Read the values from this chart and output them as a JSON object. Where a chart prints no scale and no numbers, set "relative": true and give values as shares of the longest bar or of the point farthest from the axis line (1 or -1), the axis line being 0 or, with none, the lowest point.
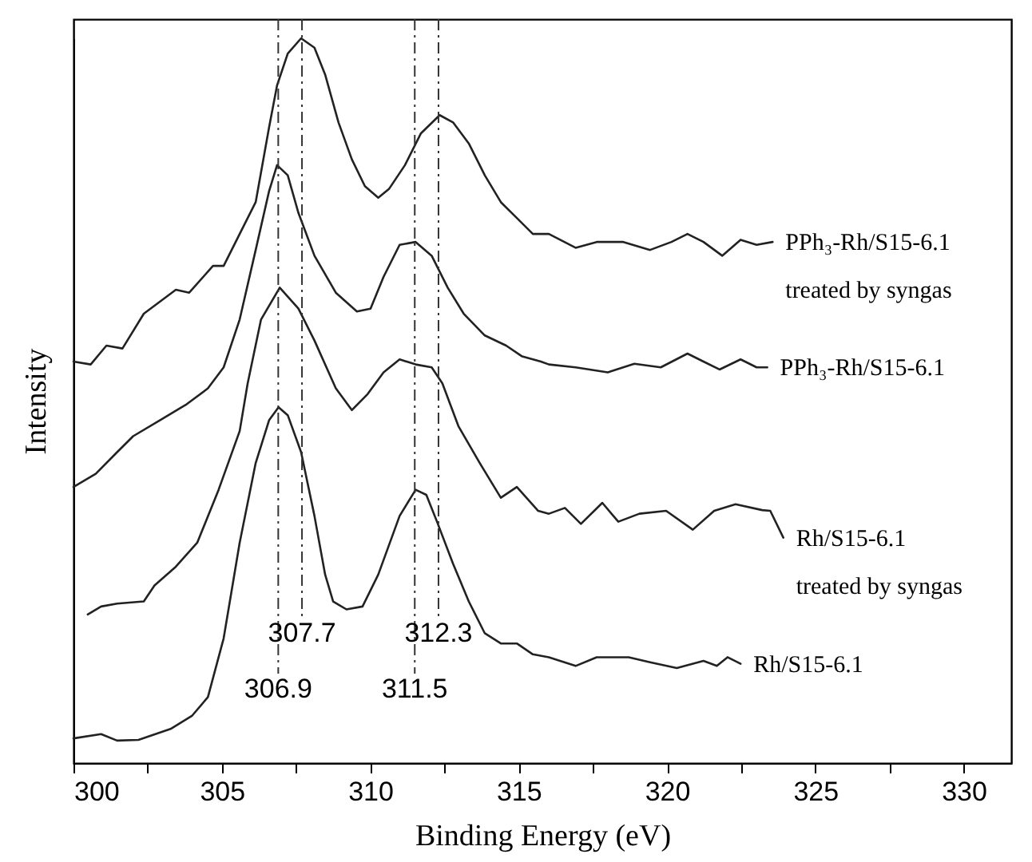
{
  "chart_data": {
    "type": "line",
    "xlabel": "Binding Energy (eV)",
    "ylabel": "Intensity",
    "relative": true,
    "xlim": [
      300,
      331.6
    ],
    "xticks": [
      300,
      {
        "value": 302.5,
        "label": null
      },
      305,
      {
        "value": 307.5,
        "label": null
      },
      310,
      {
        "value": 312.5,
        "label": null
      },
      315,
      {
        "value": 317.5,
        "label": null
      },
      320,
      {
        "value": 322.5,
        "label": null
      },
      325,
      {
        "value": 327.5,
        "label": null
      },
      330
    ],
    "grid": false,
    "series": [
      {
        "name": "PPh₃-Rh/S15-6.1\ntreated by syngas",
        "color": "#222222",
        "x": [
          300.0,
          300.58,
          301.11,
          301.65,
          302.37,
          303.45,
          303.9,
          304.7,
          305.06,
          305.6,
          306.14,
          306.59,
          306.86,
          307.22,
          307.67,
          308.12,
          308.48,
          308.93,
          309.38,
          309.82,
          310.27,
          310.63,
          311.17,
          311.71,
          312.34,
          312.79,
          313.32,
          313.86,
          314.4,
          314.94,
          315.48,
          316.02,
          316.92,
          317.63,
          318.53,
          319.43,
          320.15,
          320.69,
          321.23,
          321.86,
          322.48,
          323.02,
          323.56
        ],
        "values": [
          0.554,
          0.55,
          0.576,
          0.572,
          0.62,
          0.653,
          0.649,
          0.686,
          0.686,
          0.73,
          0.774,
          0.877,
          0.935,
          0.979,
          1,
          0.987,
          0.95,
          0.884,
          0.833,
          0.796,
          0.78,
          0.792,
          0.825,
          0.869,
          0.894,
          0.884,
          0.855,
          0.811,
          0.774,
          0.752,
          0.73,
          0.73,
          0.711,
          0.719,
          0.719,
          0.708,
          0.719,
          0.73,
          0.719,
          0.7,
          0.722,
          0.715,
          0.719
        ]
      },
      {
        "name": "PPh₃-Rh/S15-6.1",
        "color": "#222222",
        "x": [
          300.0,
          300.75,
          301.47,
          302.01,
          302.91,
          303.81,
          304.53,
          305.06,
          305.6,
          306.14,
          306.59,
          306.86,
          307.22,
          307.58,
          308.12,
          308.84,
          309.55,
          310.01,
          310.45,
          310.99,
          311.53,
          312.07,
          312.61,
          313.15,
          313.86,
          314.58,
          315.12,
          315.75,
          316.02,
          316.92,
          318.0,
          318.9,
          319.79,
          320.69,
          321.23,
          321.77,
          322.48,
          323.02,
          323.38
        ],
        "values": [
          0.381,
          0.399,
          0.429,
          0.451,
          0.473,
          0.495,
          0.517,
          0.546,
          0.612,
          0.708,
          0.789,
          0.825,
          0.811,
          0.759,
          0.7,
          0.649,
          0.623,
          0.627,
          0.671,
          0.715,
          0.719,
          0.7,
          0.656,
          0.62,
          0.59,
          0.576,
          0.561,
          0.554,
          0.55,
          0.546,
          0.539,
          0.551,
          0.546,
          0.565,
          0.554,
          0.543,
          0.557,
          0.546,
          0.546
        ]
      },
      {
        "name": "Rh/S15-6.1\ntreated by syngas",
        "color": "#222222",
        "x": [
          300.48,
          300.93,
          301.47,
          302.37,
          302.73,
          303.45,
          304.17,
          304.89,
          305.6,
          305.87,
          306.32,
          306.95,
          307.58,
          308.12,
          308.84,
          309.38,
          309.91,
          310.45,
          310.99,
          311.53,
          312.07,
          312.43,
          312.97,
          313.69,
          314.4,
          314.94,
          315.66,
          316.02,
          316.56,
          317.1,
          317.82,
          318.36,
          319.07,
          319.97,
          320.87,
          321.59,
          322.31,
          323.21,
          323.48,
          323.92
        ],
        "values": [
          0.205,
          0.216,
          0.22,
          0.223,
          0.245,
          0.271,
          0.304,
          0.377,
          0.458,
          0.524,
          0.612,
          0.656,
          0.627,
          0.583,
          0.517,
          0.487,
          0.509,
          0.539,
          0.557,
          0.55,
          0.546,
          0.524,
          0.465,
          0.414,
          0.366,
          0.381,
          0.348,
          0.344,
          0.352,
          0.33,
          0.359,
          0.333,
          0.344,
          0.348,
          0.322,
          0.348,
          0.357,
          0.349,
          0.348,
          0.311
        ]
      },
      {
        "name": "Rh/S15-6.1",
        "color": "#222222",
        "x": [
          300.0,
          300.93,
          301.47,
          302.19,
          303.27,
          303.99,
          304.53,
          305.06,
          305.6,
          306.14,
          306.59,
          306.91,
          307.22,
          307.67,
          308.12,
          308.48,
          308.75,
          309.2,
          309.74,
          310.27,
          310.99,
          311.53,
          311.89,
          312.25,
          312.79,
          313.32,
          313.86,
          314.4,
          314.94,
          315.48,
          316.02,
          316.92,
          317.63,
          318.71,
          319.43,
          320.33,
          321.23,
          321.68,
          322.04,
          322.48
        ],
        "values": [
          0.034,
          0.04,
          0.031,
          0.032,
          0.047,
          0.065,
          0.091,
          0.172,
          0.304,
          0.414,
          0.473,
          0.491,
          0.48,
          0.429,
          0.341,
          0.26,
          0.223,
          0.212,
          0.216,
          0.26,
          0.341,
          0.377,
          0.37,
          0.333,
          0.275,
          0.223,
          0.179,
          0.165,
          0.165,
          0.15,
          0.146,
          0.134,
          0.146,
          0.146,
          0.139,
          0.131,
          0.141,
          0.134,
          0.146,
          0.137
        ]
      }
    ],
    "ref_lines": [
      {
        "axis": "x",
        "value": 306.9,
        "label": "306.9",
        "line_style": "dashed",
        "color": "#333333"
      },
      {
        "axis": "x",
        "value": 307.7,
        "label": "307.7",
        "line_style": "dashed",
        "color": "#333333"
      },
      {
        "axis": "x",
        "value": 311.5,
        "label": "311.5",
        "line_style": "dashed",
        "color": "#333333"
      },
      {
        "axis": "x",
        "value": 312.3,
        "label": "312.3",
        "line_style": "dashed",
        "color": "#333333"
      }
    ]
  }
}
